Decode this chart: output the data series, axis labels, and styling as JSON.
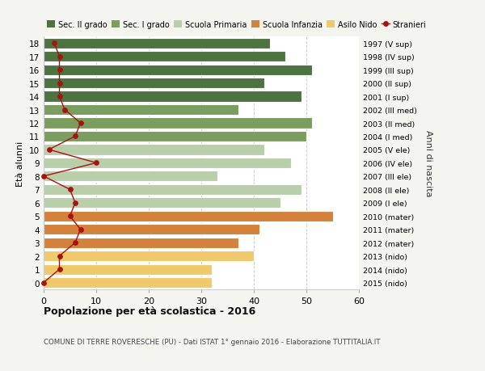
{
  "ages": [
    18,
    17,
    16,
    15,
    14,
    13,
    12,
    11,
    10,
    9,
    8,
    7,
    6,
    5,
    4,
    3,
    2,
    1,
    0
  ],
  "bar_values": [
    43,
    46,
    51,
    42,
    49,
    37,
    51,
    50,
    42,
    47,
    33,
    49,
    45,
    55,
    41,
    37,
    40,
    32,
    32
  ],
  "stranieri_values": [
    2,
    3,
    3,
    3,
    3,
    4,
    7,
    6,
    1,
    10,
    0,
    5,
    6,
    5,
    7,
    6,
    3,
    3,
    0
  ],
  "right_labels": [
    "1997 (V sup)",
    "1998 (IV sup)",
    "1999 (III sup)",
    "2000 (II sup)",
    "2001 (I sup)",
    "2002 (III med)",
    "2003 (II med)",
    "2004 (I med)",
    "2005 (V ele)",
    "2006 (IV ele)",
    "2007 (III ele)",
    "2008 (II ele)",
    "2009 (I ele)",
    "2010 (mater)",
    "2011 (mater)",
    "2012 (mater)",
    "2013 (nido)",
    "2014 (nido)",
    "2015 (nido)"
  ],
  "bar_colors": [
    "#4d7340",
    "#4d7340",
    "#4d7340",
    "#4d7340",
    "#4d7340",
    "#7a9e5e",
    "#7a9e5e",
    "#7a9e5e",
    "#b8cfaa",
    "#b8cfaa",
    "#b8cfaa",
    "#b8cfaa",
    "#b8cfaa",
    "#d4813a",
    "#d4813a",
    "#d4813a",
    "#f0c96a",
    "#f0c96a",
    "#f0c96a"
  ],
  "legend_labels": [
    "Sec. II grado",
    "Sec. I grado",
    "Scuola Primaria",
    "Scuola Infanzia",
    "Asilo Nido",
    "Stranieri"
  ],
  "legend_colors": [
    "#4d7340",
    "#7a9e5e",
    "#b8cfaa",
    "#d4813a",
    "#f0c96a",
    "#aa1111"
  ],
  "stranieri_color": "#aa1111",
  "title_bold": "Popolazione per età scolastica - 2016",
  "subtitle": "COMUNE DI TERRE ROVERESCHE (PU) - Dati ISTAT 1° gennaio 2016 - Elaborazione TUTTITALIA.IT",
  "ylabel_left": "Età alunni",
  "ylabel_right": "Anni di nascita",
  "xlim": [
    0,
    60
  ],
  "background_color": "#f5f5f0",
  "bar_background": "#ffffff"
}
